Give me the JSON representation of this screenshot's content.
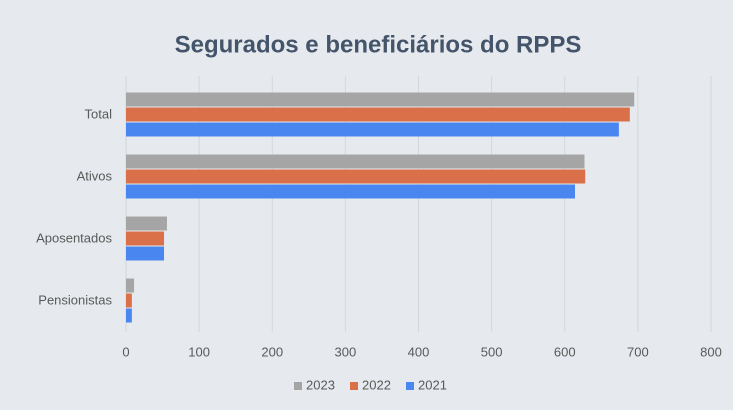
{
  "chart_data": {
    "type": "bar",
    "orientation": "horizontal",
    "title": "Segurados e beneficiários do RPPS",
    "categories": [
      "Total",
      "Ativos",
      "Aposentados",
      "Pensionistas"
    ],
    "series": [
      {
        "name": "2023",
        "color": "#a5a5a5",
        "values": [
          695,
          627,
          56,
          11
        ]
      },
      {
        "name": "2022",
        "color": "#d9704a",
        "values": [
          689,
          628,
          52,
          8
        ]
      },
      {
        "name": "2021",
        "color": "#4a86ef",
        "values": [
          674,
          614,
          52,
          8
        ]
      }
    ],
    "xlim": [
      0,
      800
    ],
    "xticks": [
      0,
      100,
      200,
      300,
      400,
      500,
      600,
      700,
      800
    ],
    "grid": true,
    "legend": "bottom"
  }
}
